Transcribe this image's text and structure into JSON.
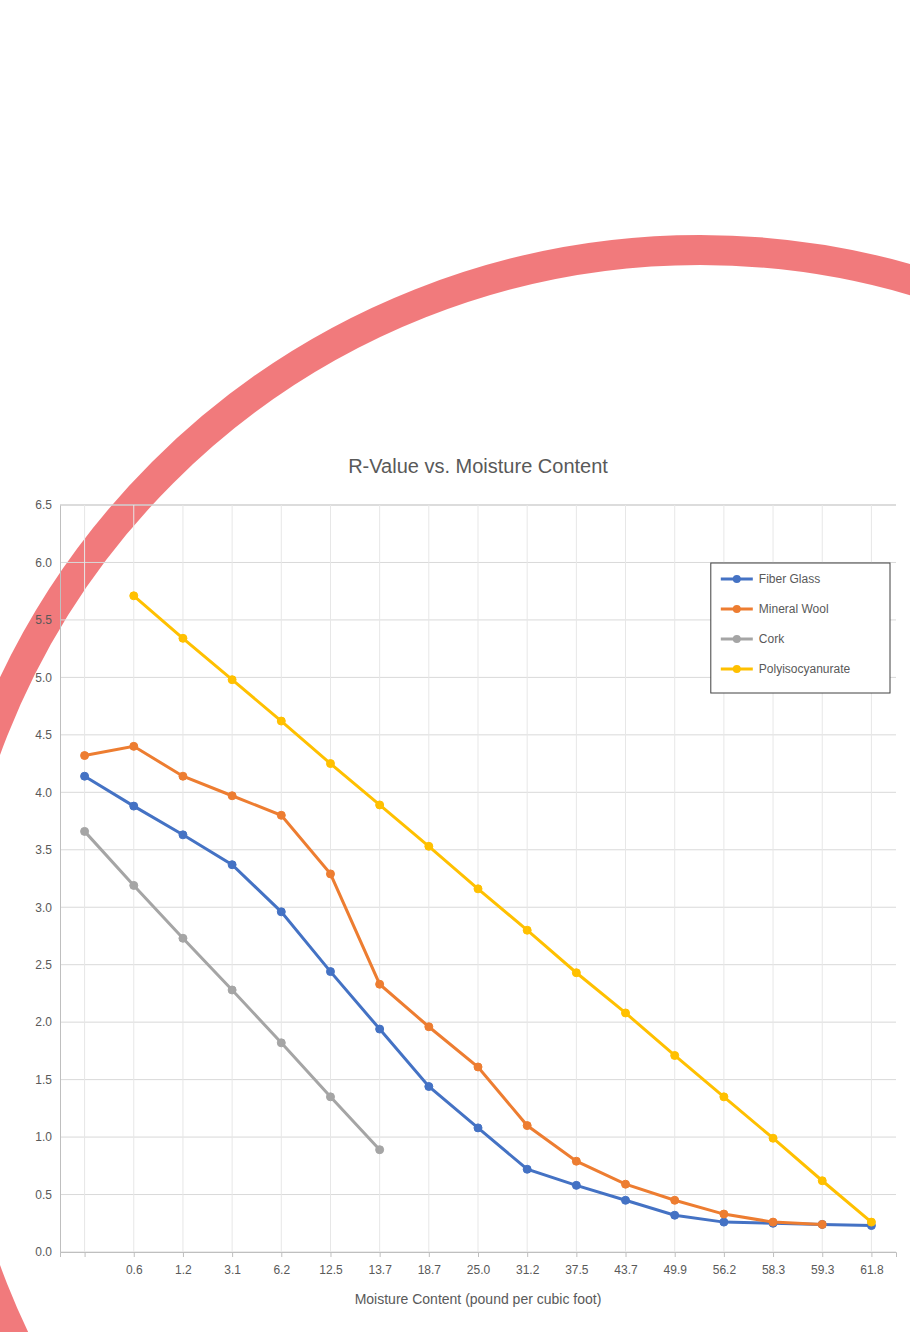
{
  "chart_data": {
    "type": "line",
    "title": "R-Value vs. Moisture Content",
    "x_label": "Moisture Content (pound per cubic foot)",
    "categories": [
      null,
      "0.6",
      "1.2",
      "3.1",
      "6.2",
      "12.5",
      "13.7",
      "18.7",
      "25.0",
      "31.2",
      "37.5",
      "43.7",
      "49.9",
      "56.2",
      "58.3",
      "59.3",
      "61.8"
    ],
    "series": [
      {
        "name": "Fiber Glass",
        "color": "#4472c4",
        "marker": "circle",
        "line_style": "solid",
        "values": [
          4.14,
          3.88,
          3.63,
          3.37,
          2.96,
          2.44,
          1.94,
          1.44,
          1.08,
          0.72,
          0.58,
          0.45,
          0.32,
          0.26,
          0.25,
          0.24,
          0.23
        ]
      },
      {
        "name": "Mineral Wool",
        "color": "#ed7d31",
        "marker": "circle",
        "line_style": "solid",
        "values": [
          4.32,
          4.4,
          4.14,
          3.97,
          3.8,
          3.29,
          2.33,
          1.96,
          1.61,
          1.1,
          0.79,
          0.59,
          0.45,
          0.33,
          0.26,
          0.24,
          null
        ]
      },
      {
        "name": "Cork",
        "color": "#a5a5a5",
        "marker": "circle",
        "line_style": "solid",
        "values": [
          3.66,
          3.19,
          2.73,
          2.28,
          1.82,
          1.35,
          0.89,
          null,
          null,
          null,
          null,
          null,
          null,
          null,
          null,
          null,
          null
        ]
      },
      {
        "name": "Polyisocyanurate",
        "color": "#ffc000",
        "marker": "circle",
        "line_style": "solid",
        "values": [
          null,
          5.71,
          5.34,
          4.98,
          4.62,
          4.25,
          3.89,
          3.53,
          3.16,
          2.8,
          2.43,
          2.08,
          1.71,
          1.35,
          0.99,
          0.62,
          0.26
        ]
      }
    ],
    "ylim": [
      0,
      6.5
    ],
    "yticks": [
      {
        "value": 0,
        "label": "0.0"
      },
      {
        "value": 0.5,
        "label": "0.5"
      },
      {
        "value": 1,
        "label": "1.0"
      },
      {
        "value": 1.5,
        "label": "1.5"
      },
      {
        "value": 2,
        "label": "2.0"
      },
      {
        "value": 2.5,
        "label": "2.5"
      },
      {
        "value": 3,
        "label": "3.0"
      },
      {
        "value": 3.5,
        "label": "3.5"
      },
      {
        "value": 4,
        "label": "4.0"
      },
      {
        "value": 4.5,
        "label": "4.5"
      },
      {
        "value": 5,
        "label": "5.0"
      },
      {
        "value": 5.5,
        "label": "5.5"
      },
      {
        "value": 6,
        "label": "6.0"
      },
      {
        "value": 6.5,
        "label": "6.5"
      }
    ],
    "grid": true,
    "legend": "top-right"
  }
}
